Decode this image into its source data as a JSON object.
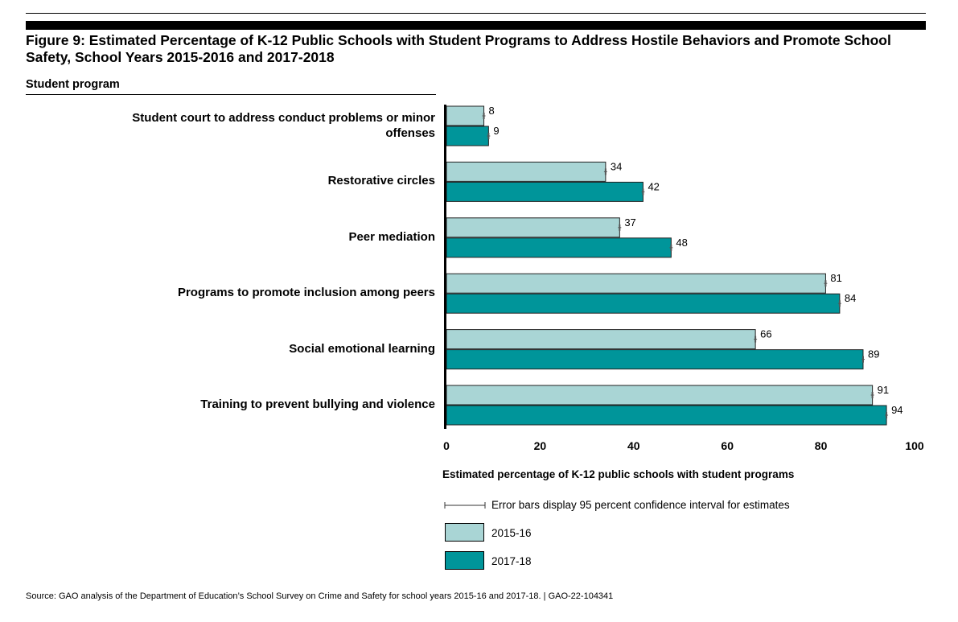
{
  "figure": {
    "title": "Figure 9: Estimated Percentage of K-12 Public Schools with Student Programs to Address Hostile Behaviors and Promote School Safety, School Years 2015-2016 and 2017-2018",
    "category_header": "Student program",
    "source": "Source: GAO analysis of the Department of Education’s School Survey on Crime and Safety for school years 2015-16 and 2017-18.  |  GAO-22-104341"
  },
  "legend": {
    "error_note": "Error bars display 95 percent confidence interval for estimates",
    "series": [
      {
        "name": "2015-16",
        "color": "#a9d5d5"
      },
      {
        "name": "2017-18",
        "color": "#00959a"
      }
    ]
  },
  "chart_data": {
    "type": "bar",
    "orientation": "horizontal",
    "categories": [
      "Student court to address conduct problems or minor offenses",
      "Restorative circles",
      "Peer mediation",
      "Programs to promote inclusion among peers",
      "Social emotional learning",
      "Training to prevent bullying and violence"
    ],
    "series": [
      {
        "name": "2015-16",
        "values": [
          8,
          34,
          37,
          81,
          66,
          91
        ],
        "labels": [
          "8",
          "34",
          "37",
          "81",
          "66",
          "91"
        ]
      },
      {
        "name": "2017-18",
        "values": [
          9,
          42,
          48,
          84,
          89,
          94
        ],
        "labels": [
          "9",
          "42",
          "48",
          "84",
          "89",
          "94"
        ]
      }
    ],
    "xlabel": "Estimated percentage of K-12 public schools with student programs",
    "xlim": [
      0,
      100
    ],
    "xticks": [
      0,
      20,
      40,
      60,
      80,
      100
    ],
    "xtick_labels": [
      "0",
      "20",
      "40",
      "60",
      "80",
      "100"
    ],
    "grid": false,
    "error_bars": true
  }
}
